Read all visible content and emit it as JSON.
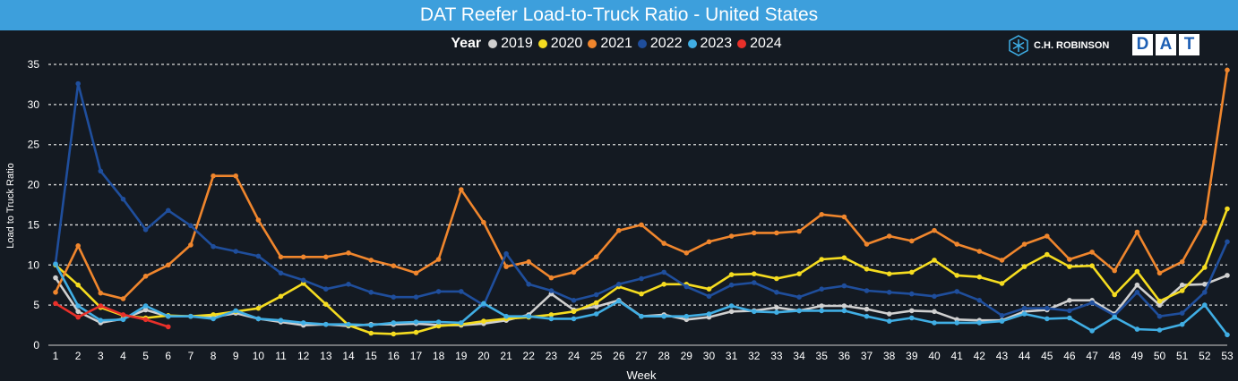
{
  "header": {
    "title": "DAT Reefer Load-to-Truck Ratio - United States"
  },
  "logos": {
    "chrobinson": "C.H. ROBINSON",
    "dat_letters": [
      "D",
      "A",
      "T"
    ],
    "chrobinson_icon": "snowflake-hex-icon"
  },
  "colors": {
    "title_bar": "#3d9fdc",
    "background": "#141a22",
    "gridline": "#d9d9d9"
  },
  "chart_data": {
    "type": "line",
    "title": "DAT Reefer Load-to-Truck Ratio - United States",
    "legend_title": "Year",
    "legend_position": "top-center",
    "xlabel": "Week",
    "ylabel": "Load to Truck Ratio",
    "ylim": [
      0,
      35
    ],
    "yticks": [
      0,
      5,
      10,
      15,
      20,
      25,
      30,
      35
    ],
    "grid": "horizontal-dashed",
    "x": [
      1,
      2,
      3,
      4,
      5,
      6,
      7,
      8,
      9,
      10,
      11,
      12,
      13,
      14,
      15,
      16,
      17,
      18,
      19,
      20,
      21,
      22,
      23,
      24,
      25,
      26,
      27,
      28,
      29,
      30,
      31,
      32,
      33,
      34,
      35,
      36,
      37,
      38,
      39,
      40,
      41,
      42,
      43,
      44,
      45,
      46,
      47,
      48,
      49,
      50,
      51,
      52,
      53
    ],
    "series": [
      {
        "name": "2019",
        "color": "#d0d0d0",
        "values": [
          8.4,
          4.2,
          2.8,
          3.3,
          4.4,
          3.6,
          3.6,
          3.5,
          4.0,
          3.3,
          2.9,
          2.5,
          2.6,
          2.4,
          2.6,
          2.6,
          2.7,
          2.5,
          2.5,
          2.7,
          3.1,
          3.8,
          6.4,
          4.4,
          4.8,
          5.6,
          3.6,
          3.8,
          3.2,
          3.5,
          4.2,
          4.3,
          4.7,
          4.3,
          4.9,
          4.9,
          4.5,
          3.9,
          4.3,
          4.2,
          3.2,
          3.1,
          3.1,
          4.2,
          4.4,
          5.6,
          5.6,
          3.9,
          7.5,
          5.0,
          7.5,
          7.6,
          8.7
        ]
      },
      {
        "name": "2020",
        "color": "#f5dc20",
        "values": [
          10.0,
          7.5,
          4.7,
          3.7,
          3.4,
          3.7,
          3.6,
          3.8,
          4.2,
          4.6,
          6.1,
          7.7,
          5.1,
          2.5,
          1.5,
          1.4,
          1.6,
          2.4,
          2.6,
          3.0,
          3.3,
          3.5,
          3.8,
          4.2,
          5.3,
          7.3,
          6.4,
          7.6,
          7.6,
          7.0,
          8.8,
          8.9,
          8.3,
          8.9,
          10.7,
          10.9,
          9.5,
          8.9,
          9.1,
          10.6,
          8.7,
          8.5,
          7.7,
          9.8,
          11.3,
          9.8,
          9.9,
          6.3,
          9.2,
          5.5,
          6.8,
          9.7,
          17.0
        ]
      },
      {
        "name": "2021",
        "color": "#f0862d",
        "values": [
          6.6,
          12.4,
          6.5,
          5.8,
          8.6,
          10.0,
          12.5,
          21.1,
          21.1,
          15.6,
          11.0,
          11.0,
          11.0,
          11.5,
          10.6,
          9.9,
          9.0,
          10.7,
          19.4,
          15.3,
          9.8,
          10.4,
          8.4,
          9.1,
          11.0,
          14.3,
          15.0,
          12.7,
          11.5,
          12.9,
          13.6,
          14.0,
          14.0,
          14.2,
          16.3,
          16.0,
          12.6,
          13.6,
          13.0,
          14.3,
          12.6,
          11.7,
          10.6,
          12.6,
          13.6,
          10.7,
          11.6,
          9.3,
          14.1,
          9.0,
          10.4,
          15.4,
          34.3
        ]
      },
      {
        "name": "2022",
        "color": "#1f4e9c",
        "values": [
          10.2,
          32.6,
          21.7,
          18.2,
          14.4,
          16.8,
          14.9,
          12.3,
          11.7,
          11.1,
          9.0,
          8.1,
          7.0,
          7.6,
          6.6,
          6.0,
          6.0,
          6.7,
          6.7,
          5.0,
          11.4,
          7.6,
          6.8,
          5.6,
          6.3,
          7.6,
          8.3,
          9.1,
          7.3,
          6.1,
          7.5,
          7.8,
          6.6,
          6.0,
          7.0,
          7.4,
          6.8,
          6.6,
          6.4,
          6.1,
          6.7,
          5.6,
          3.7,
          4.6,
          4.6,
          4.3,
          5.3,
          3.7,
          6.6,
          3.6,
          4.0,
          6.6,
          12.9
        ]
      },
      {
        "name": "2023",
        "color": "#40aee4",
        "values": [
          10.1,
          4.9,
          3.1,
          3.2,
          4.9,
          3.6,
          3.6,
          3.3,
          4.3,
          3.3,
          3.1,
          2.8,
          2.6,
          2.6,
          2.5,
          2.8,
          2.9,
          2.9,
          2.8,
          5.2,
          3.6,
          3.6,
          3.3,
          3.3,
          3.9,
          5.5,
          3.6,
          3.6,
          3.6,
          3.9,
          4.9,
          4.2,
          4.1,
          4.3,
          4.3,
          4.3,
          3.6,
          3.0,
          3.4,
          2.8,
          2.8,
          2.8,
          3.0,
          3.9,
          3.3,
          3.4,
          1.8,
          3.5,
          2.0,
          1.9,
          2.6,
          5.0,
          1.3
        ]
      },
      {
        "name": "2024",
        "color": "#e8302a",
        "values": [
          5.2,
          3.5,
          4.9,
          3.8,
          3.2,
          2.3,
          null,
          null,
          null,
          null,
          null,
          null,
          null,
          null,
          null,
          null,
          null,
          null,
          null,
          null,
          null,
          null,
          null,
          null,
          null,
          null,
          null,
          null,
          null,
          null,
          null,
          null,
          null,
          null,
          null,
          null,
          null,
          null,
          null,
          null,
          null,
          null,
          null,
          null,
          null,
          null,
          null,
          null,
          null,
          null,
          null,
          null,
          null
        ]
      }
    ]
  }
}
